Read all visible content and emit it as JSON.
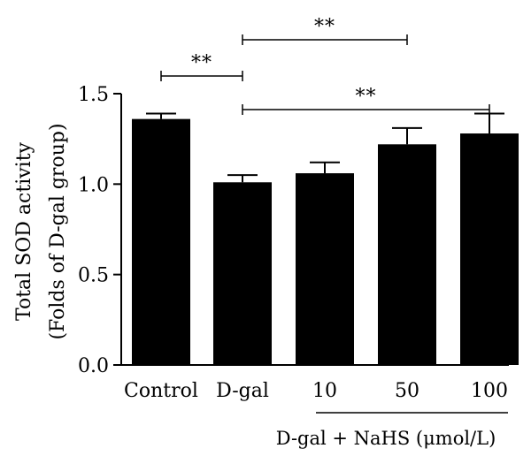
{
  "chart_data": {
    "type": "bar",
    "categories": [
      "Control",
      "D-gal",
      "10",
      "50",
      "100"
    ],
    "values": [
      1.36,
      1.01,
      1.06,
      1.22,
      1.28
    ],
    "errors": [
      0.03,
      0.04,
      0.06,
      0.09,
      0.11
    ],
    "ylabel_line1": "Total SOD activity",
    "ylabel_line2": "(Folds of D-gal group)",
    "ylim": [
      0.0,
      1.5
    ],
    "yticks": [
      "0.0",
      "0.5",
      "1.0",
      "1.5"
    ],
    "ytick_values": [
      0.0,
      0.5,
      1.0,
      1.5
    ],
    "group_label": "D-gal + NaHS (μmol/L)",
    "group_categories": [
      "10",
      "50",
      "100"
    ],
    "significance": [
      {
        "from": "Control",
        "to": "D-gal",
        "label": "**"
      },
      {
        "from": "D-gal",
        "to": "50",
        "label": "**"
      },
      {
        "from": "D-gal",
        "to": "100",
        "label": "**"
      }
    ],
    "bar_color": "#000000",
    "grid": false
  }
}
